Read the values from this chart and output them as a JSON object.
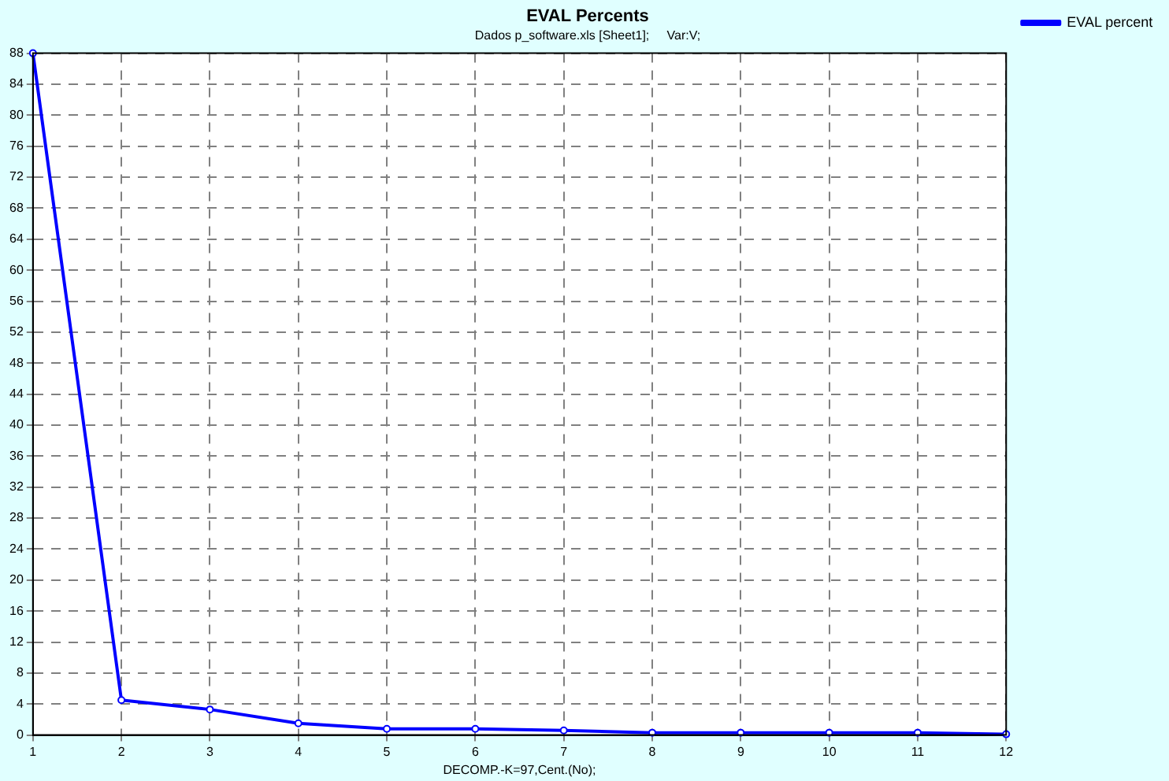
{
  "chart_data": {
    "type": "line",
    "title": "EVAL Percents",
    "subtitle": "Dados p_software.xls [Sheet1];     Var:V;",
    "xlabel": "DECOMP.-K=97,Cent.(No);",
    "x": [
      1,
      2,
      3,
      4,
      5,
      6,
      7,
      8,
      9,
      10,
      11,
      12
    ],
    "series": [
      {
        "name": "EVAL percent",
        "color": "#0000ff",
        "values": [
          88,
          4.5,
          3.3,
          1.5,
          0.8,
          0.8,
          0.6,
          0.3,
          0.3,
          0.3,
          0.3,
          0.1
        ]
      }
    ],
    "xlim": [
      1,
      12
    ],
    "xticks": [
      1,
      2,
      3,
      4,
      5,
      6,
      7,
      8,
      9,
      10,
      11,
      12
    ],
    "ylim": [
      0,
      88
    ],
    "yticks": [
      0,
      4,
      8,
      12,
      16,
      20,
      24,
      28,
      32,
      36,
      40,
      44,
      48,
      52,
      56,
      60,
      64,
      68,
      72,
      76,
      80,
      84,
      88
    ],
    "grid": true,
    "legend": "top right",
    "marker": "circle",
    "line_style": "solid"
  }
}
